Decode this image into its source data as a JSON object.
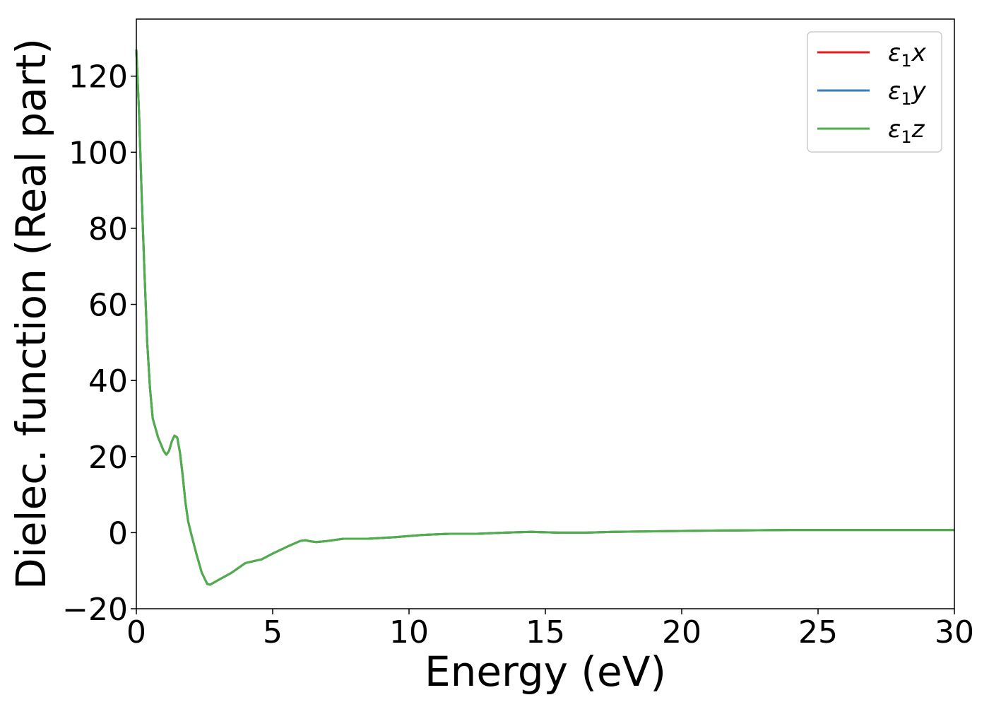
{
  "chart_data": {
    "type": "line",
    "title": "",
    "xlabel": "Energy (eV)",
    "ylabel": "Dielec. function (Real part)",
    "xlim": [
      0,
      30
    ],
    "ylim": [
      -20,
      135
    ],
    "xticks": [
      0,
      5,
      10,
      15,
      20,
      25,
      30
    ],
    "xtick_labels": [
      "0",
      "5",
      "10",
      "15",
      "20",
      "25",
      "30"
    ],
    "yticks": [
      -20,
      0,
      20,
      40,
      60,
      80,
      100,
      120
    ],
    "ytick_labels": [
      "−20",
      "0",
      "20",
      "40",
      "60",
      "80",
      "100",
      "120"
    ],
    "grid": false,
    "legend_position": "top-right",
    "x": [
      0.0,
      0.1,
      0.2,
      0.3,
      0.4,
      0.5,
      0.6,
      0.8,
      1.0,
      1.1,
      1.2,
      1.3,
      1.4,
      1.5,
      1.6,
      1.7,
      1.8,
      1.9,
      2.0,
      2.2,
      2.4,
      2.6,
      2.7,
      2.8,
      3.0,
      3.5,
      4.0,
      4.3,
      4.6,
      5.0,
      5.5,
      6.0,
      6.2,
      6.4,
      6.6,
      7.0,
      7.6,
      8.5,
      9.5,
      10.5,
      11.5,
      12.5,
      13.5,
      14.5,
      15.5,
      16.5,
      17.5,
      18.5,
      19.5,
      20.5,
      22.0,
      24.0,
      26.0,
      28.0,
      30.0
    ],
    "series": [
      {
        "name": "ε1x",
        "color": "#e41a1c",
        "values": [
          127.0,
          110.0,
          88.0,
          68.0,
          50.0,
          38.0,
          30.0,
          25.0,
          21.5,
          20.5,
          21.5,
          24.0,
          25.5,
          25.0,
          21.0,
          15.0,
          8.0,
          3.0,
          0.0,
          -5.5,
          -10.5,
          -13.5,
          -13.7,
          -13.3,
          -12.5,
          -10.5,
          -8.0,
          -7.5,
          -7.0,
          -5.5,
          -3.8,
          -2.2,
          -2.0,
          -2.3,
          -2.5,
          -2.2,
          -1.6,
          -1.6,
          -1.2,
          -0.6,
          -0.3,
          -0.3,
          0.0,
          0.2,
          0.0,
          0.0,
          0.2,
          0.3,
          0.4,
          0.5,
          0.6,
          0.7,
          0.7,
          0.7,
          0.7
        ]
      },
      {
        "name": "ε1y",
        "color": "#377eb8",
        "values": [
          127.0,
          110.0,
          88.0,
          68.0,
          50.0,
          38.0,
          30.0,
          25.0,
          21.5,
          20.5,
          21.5,
          24.0,
          25.5,
          25.0,
          21.0,
          15.0,
          8.0,
          3.0,
          0.0,
          -5.5,
          -10.5,
          -13.5,
          -13.7,
          -13.3,
          -12.5,
          -10.5,
          -8.0,
          -7.5,
          -7.0,
          -5.5,
          -3.8,
          -2.2,
          -2.0,
          -2.3,
          -2.5,
          -2.2,
          -1.6,
          -1.6,
          -1.2,
          -0.6,
          -0.3,
          -0.3,
          0.0,
          0.2,
          0.0,
          0.0,
          0.2,
          0.3,
          0.4,
          0.5,
          0.6,
          0.7,
          0.7,
          0.7,
          0.7
        ]
      },
      {
        "name": "ε1z",
        "color": "#4daf4a",
        "values": [
          127.0,
          110.0,
          88.0,
          68.0,
          50.0,
          38.0,
          30.0,
          25.0,
          21.5,
          20.5,
          21.5,
          24.0,
          25.5,
          25.0,
          21.0,
          15.0,
          8.0,
          3.0,
          0.0,
          -5.5,
          -10.5,
          -13.5,
          -13.7,
          -13.3,
          -12.5,
          -10.5,
          -8.0,
          -7.5,
          -7.0,
          -5.5,
          -3.8,
          -2.2,
          -2.0,
          -2.3,
          -2.5,
          -2.2,
          -1.6,
          -1.6,
          -1.2,
          -0.6,
          -0.3,
          -0.3,
          0.0,
          0.2,
          0.0,
          0.0,
          0.2,
          0.3,
          0.4,
          0.5,
          0.6,
          0.7,
          0.7,
          0.7,
          0.7
        ]
      }
    ],
    "legend": [
      {
        "base": "ε",
        "sub": "1",
        "suffix": "x"
      },
      {
        "base": "ε",
        "sub": "1",
        "suffix": "y"
      },
      {
        "base": "ε",
        "sub": "1",
        "suffix": "z"
      }
    ]
  }
}
